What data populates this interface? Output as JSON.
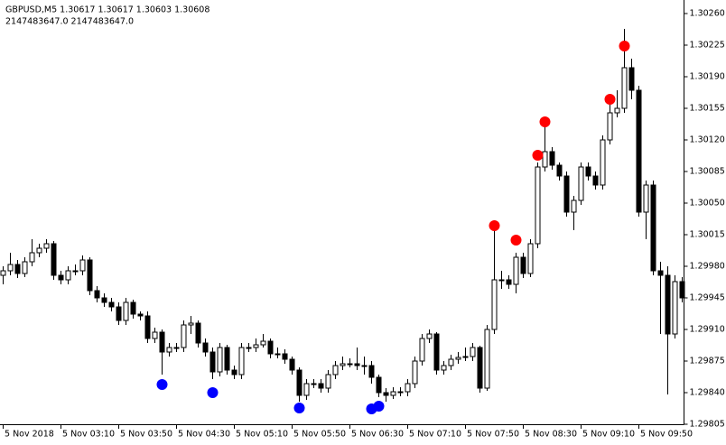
{
  "chart_data": {
    "type": "candlestick",
    "title": "GBPUSD,M5  1.30617 1.30617 1.30603 1.30608",
    "subtitle": "2147483647.0  2147483647.0",
    "up_color": "#ffffff",
    "down_color": "#000000",
    "ylim": [
      1.29805,
      1.30275
    ],
    "yticks": [
      {
        "value": 1.3026,
        "label": "1.30260"
      },
      {
        "value": 1.30225,
        "label": "1.30225"
      },
      {
        "value": 1.3019,
        "label": "1.30190"
      },
      {
        "value": 1.30155,
        "label": "1.30155"
      },
      {
        "value": 1.3012,
        "label": "1.30120"
      },
      {
        "value": 1.30085,
        "label": "1.30085"
      },
      {
        "value": 1.3005,
        "label": "1.30050"
      },
      {
        "value": 1.30015,
        "label": "1.30015"
      },
      {
        "value": 1.2998,
        "label": "1.29980"
      },
      {
        "value": 1.29945,
        "label": "1.29945"
      },
      {
        "value": 1.2991,
        "label": "1.29910"
      },
      {
        "value": 1.29875,
        "label": "1.29875"
      },
      {
        "value": 1.2984,
        "label": "1.29840"
      },
      {
        "value": 1.29805,
        "label": "1.29805"
      }
    ],
    "categories": [
      "5 Nov 2018",
      null,
      null,
      null,
      null,
      null,
      null,
      null,
      "5 Nov 03:10",
      null,
      null,
      null,
      null,
      null,
      null,
      null,
      "5 Nov 03:50",
      null,
      null,
      null,
      null,
      null,
      null,
      null,
      "5 Nov 04:30",
      null,
      null,
      null,
      null,
      null,
      null,
      null,
      "5 Nov 05:10",
      null,
      null,
      null,
      null,
      null,
      null,
      null,
      "5 Nov 05:50",
      null,
      null,
      null,
      null,
      null,
      null,
      null,
      "5 Nov 06:30",
      null,
      null,
      null,
      null,
      null,
      null,
      null,
      "5 Nov 07:10",
      null,
      null,
      null,
      null,
      null,
      null,
      null,
      "5 Nov 07:50",
      null,
      null,
      null,
      null,
      null,
      null,
      null,
      "5 Nov 08:30",
      null,
      null,
      null,
      null,
      null,
      null,
      null,
      "5 Nov 09:10",
      null,
      null,
      null,
      null,
      null,
      null,
      null,
      "5 Nov 09:50",
      null,
      null,
      null,
      null,
      null,
      null
    ],
    "open": [
      1.2997,
      1.29975,
      1.29982,
      1.29972,
      1.29985,
      1.29995,
      1.3,
      1.30005,
      1.2997,
      1.29965,
      1.29975,
      1.29975,
      1.29987,
      1.29953,
      1.29945,
      1.2994,
      1.29935,
      1.2992,
      1.2994,
      1.29927,
      1.29925,
      1.299,
      1.29907,
      1.29885,
      1.2989,
      1.2989,
      1.29915,
      1.29917,
      1.29895,
      1.29885,
      1.29863,
      1.2989,
      1.29865,
      1.2986,
      1.2989,
      1.2989,
      1.29893,
      1.29897,
      1.29883,
      1.29883,
      1.29877,
      1.29865,
      1.29837,
      1.2985,
      1.2985,
      1.29845,
      1.2986,
      1.2987,
      1.29872,
      1.29872,
      1.2987,
      1.2987,
      1.29857,
      1.2984,
      1.29837,
      1.29841,
      1.29841,
      1.2985,
      1.29875,
      1.299,
      1.29905,
      1.29865,
      1.2987,
      1.29877,
      1.29879,
      1.2988,
      1.2989,
      1.29845,
      1.2991,
      1.29965,
      1.29965,
      1.2996,
      1.2999,
      1.29972,
      1.30005,
      1.3009,
      1.30107,
      1.30092,
      1.3008,
      1.3004,
      1.30053,
      1.3009,
      1.3008,
      1.3007,
      1.3012,
      1.3015,
      1.30155,
      1.302,
      1.30175,
      1.3004,
      1.3007,
      1.29975,
      1.2997,
      1.29905,
      1.29963
    ],
    "high": [
      1.2998,
      1.29995,
      1.29987,
      1.2999,
      1.3001,
      1.30005,
      1.3001,
      1.30008,
      1.29975,
      1.2998,
      1.29982,
      1.29992,
      1.2999,
      1.29958,
      1.2995,
      1.29945,
      1.2994,
      1.29945,
      1.29943,
      1.2993,
      1.2993,
      1.29912,
      1.2991,
      1.29895,
      1.29895,
      1.2992,
      1.29925,
      1.2992,
      1.299,
      1.2989,
      1.29895,
      1.29893,
      1.2987,
      1.29895,
      1.29895,
      1.299,
      1.29905,
      1.299,
      1.2989,
      1.29888,
      1.2988,
      1.29868,
      1.29855,
      1.29855,
      1.29855,
      1.29865,
      1.29875,
      1.2988,
      1.29878,
      1.2989,
      1.2988,
      1.29875,
      1.2986,
      1.29845,
      1.29846,
      1.29846,
      1.29855,
      1.2988,
      1.29905,
      1.2991,
      1.29907,
      1.29875,
      1.29882,
      1.29885,
      1.2989,
      1.29895,
      1.29892,
      1.29915,
      1.3002,
      1.29975,
      1.2997,
      1.29995,
      1.29995,
      1.3001,
      1.30095,
      1.30145,
      1.30112,
      1.30095,
      1.30085,
      1.30058,
      1.30095,
      1.30095,
      1.30085,
      1.30125,
      1.3016,
      1.30175,
      1.30243,
      1.3021,
      1.3018,
      1.30075,
      1.30075,
      1.29985,
      1.2998,
      1.2997,
      1.29968
    ],
    "low": [
      1.2996,
      1.2997,
      1.29967,
      1.29968,
      1.2998,
      1.2999,
      1.29995,
      1.29965,
      1.2996,
      1.2996,
      1.2997,
      1.2997,
      1.29948,
      1.2994,
      1.29935,
      1.2993,
      1.29915,
      1.29915,
      1.29922,
      1.2992,
      1.29895,
      1.29895,
      1.2986,
      1.2988,
      1.29885,
      1.29885,
      1.29905,
      1.2989,
      1.2988,
      1.29855,
      1.29858,
      1.2986,
      1.29855,
      1.29855,
      1.29885,
      1.29885,
      1.2989,
      1.29878,
      1.29878,
      1.29872,
      1.2986,
      1.2983,
      1.29832,
      1.29845,
      1.2984,
      1.2984,
      1.29855,
      1.29865,
      1.29868,
      1.29865,
      1.2986,
      1.2985,
      1.29835,
      1.2983,
      1.29833,
      1.29836,
      1.29836,
      1.29845,
      1.2987,
      1.29895,
      1.2986,
      1.2986,
      1.29865,
      1.29872,
      1.29875,
      1.29875,
      1.2984,
      1.29842,
      1.29905,
      1.29955,
      1.29955,
      1.2995,
      1.29967,
      1.29968,
      1.3,
      1.30085,
      1.30087,
      1.30075,
      1.30035,
      1.3002,
      1.30048,
      1.30075,
      1.30065,
      1.30065,
      1.30115,
      1.30145,
      1.3015,
      1.30165,
      1.30035,
      1.3001,
      1.2997,
      1.29905,
      1.29838,
      1.299,
      1.2994
    ],
    "close": [
      1.29975,
      1.29982,
      1.29972,
      1.29985,
      1.29995,
      1.3,
      1.30005,
      1.2997,
      1.29965,
      1.29975,
      1.29975,
      1.29987,
      1.29953,
      1.29945,
      1.2994,
      1.29935,
      1.2992,
      1.2994,
      1.29927,
      1.29925,
      1.299,
      1.29907,
      1.29885,
      1.2989,
      1.2989,
      1.29915,
      1.29917,
      1.29895,
      1.29885,
      1.29863,
      1.2989,
      1.29865,
      1.2986,
      1.2989,
      1.2989,
      1.29893,
      1.29897,
      1.29883,
      1.29883,
      1.29877,
      1.29865,
      1.29837,
      1.2985,
      1.2985,
      1.29845,
      1.2986,
      1.2987,
      1.29872,
      1.29872,
      1.2987,
      1.2987,
      1.29857,
      1.2984,
      1.29837,
      1.29841,
      1.29841,
      1.2985,
      1.29875,
      1.299,
      1.29905,
      1.29865,
      1.2987,
      1.29877,
      1.29879,
      1.2988,
      1.2989,
      1.29845,
      1.2991,
      1.29965,
      1.29965,
      1.2996,
      1.2999,
      1.29972,
      1.30005,
      1.3009,
      1.30107,
      1.30092,
      1.3008,
      1.3004,
      1.30053,
      1.3009,
      1.3008,
      1.3007,
      1.3012,
      1.3015,
      1.30155,
      1.302,
      1.30175,
      1.3004,
      1.3007,
      1.29975,
      1.2997,
      1.29905,
      1.29963,
      1.29945
    ],
    "markers": [
      {
        "color": "#0000ff",
        "points": [
          {
            "index": 22,
            "value": 1.29849
          },
          {
            "index": 29,
            "value": 1.2984
          },
          {
            "index": 41,
            "value": 1.29823
          },
          {
            "index": 51,
            "value": 1.29822
          },
          {
            "index": 52,
            "value": 1.29825
          }
        ]
      },
      {
        "color": "#ff0000",
        "points": [
          {
            "index": 68,
            "value": 1.30025
          },
          {
            "index": 71,
            "value": 1.30009
          },
          {
            "index": 74,
            "value": 1.30103
          },
          {
            "index": 75,
            "value": 1.3014
          },
          {
            "index": 84,
            "value": 1.30165
          },
          {
            "index": 86,
            "value": 1.30224
          }
        ]
      }
    ]
  }
}
